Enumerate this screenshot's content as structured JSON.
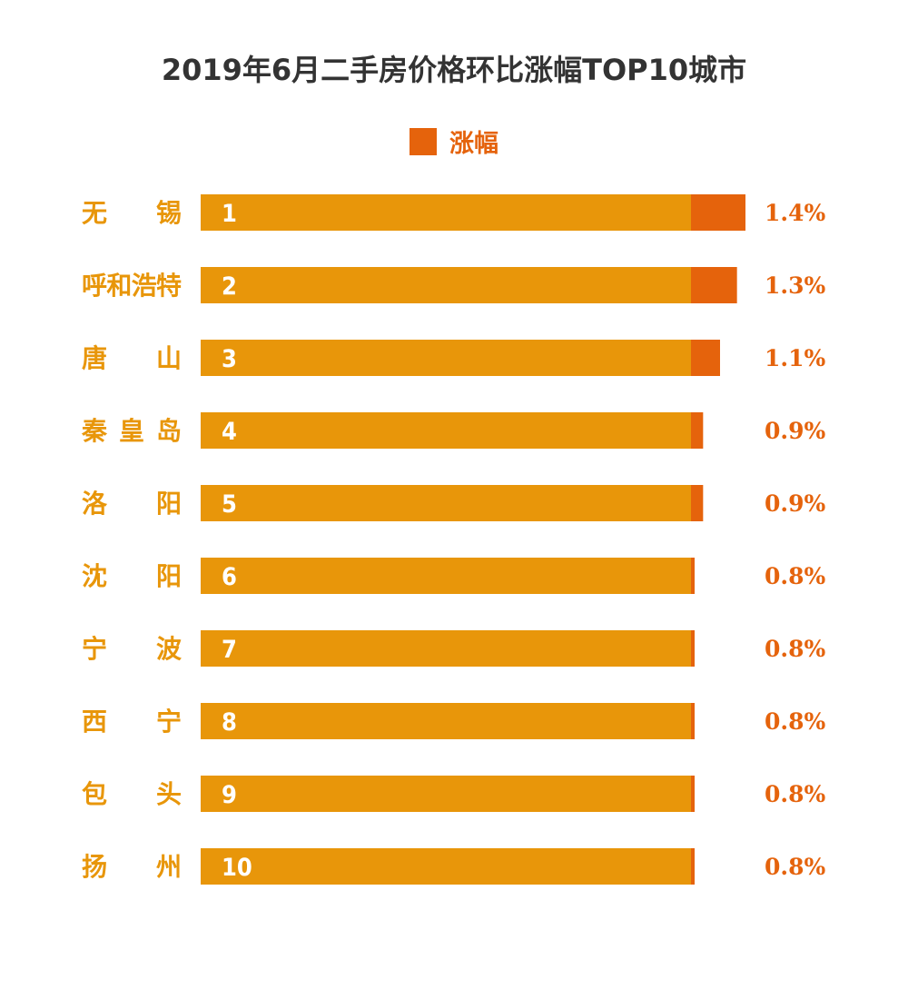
{
  "chart_data": {
    "type": "bar",
    "orientation": "horizontal",
    "title": "2019年6月二手房价格环比涨幅TOP10城市",
    "legend": {
      "position": "top-center",
      "entries": [
        "涨幅"
      ]
    },
    "categories": [
      "无锡",
      "呼和浩特",
      "唐山",
      "秦皇岛",
      "洛阳",
      "沈阳",
      "宁波",
      "西宁",
      "包头",
      "扬州"
    ],
    "ranks": [
      "1",
      "2",
      "3",
      "4",
      "5",
      "6",
      "7",
      "8",
      "9",
      "10"
    ],
    "series": [
      {
        "name": "涨幅",
        "values": [
          1.4,
          1.3,
          1.1,
          0.9,
          0.9,
          0.8,
          0.8,
          0.8,
          0.8,
          0.8
        ]
      }
    ],
    "value_labels": [
      "1.4%",
      "1.3%",
      "1.1%",
      "0.9%",
      "0.9%",
      "0.8%",
      "0.8%",
      "0.8%",
      "0.8%",
      "0.8%"
    ],
    "colors": {
      "base_bar": "#E8960A",
      "increase": "#E5630C",
      "city_text": "#E8960A",
      "value_text": "#E5630C",
      "title_text": "#333333"
    }
  }
}
